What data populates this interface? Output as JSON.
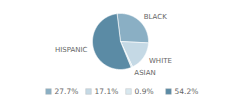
{
  "chart_data": {
    "type": "pie",
    "categories": [
      "BLACK",
      "WHITE",
      "ASIAN",
      "HISPANIC"
    ],
    "values": [
      27.7,
      17.1,
      0.9,
      54.2
    ],
    "colors": [
      "#8aafc4",
      "#c5d9e5",
      "#d8e8ef",
      "#5b8ba5"
    ],
    "value_labels": [
      "27.7%",
      "17.1%",
      "0.9%",
      "54.2%"
    ],
    "legend": "bottom"
  }
}
